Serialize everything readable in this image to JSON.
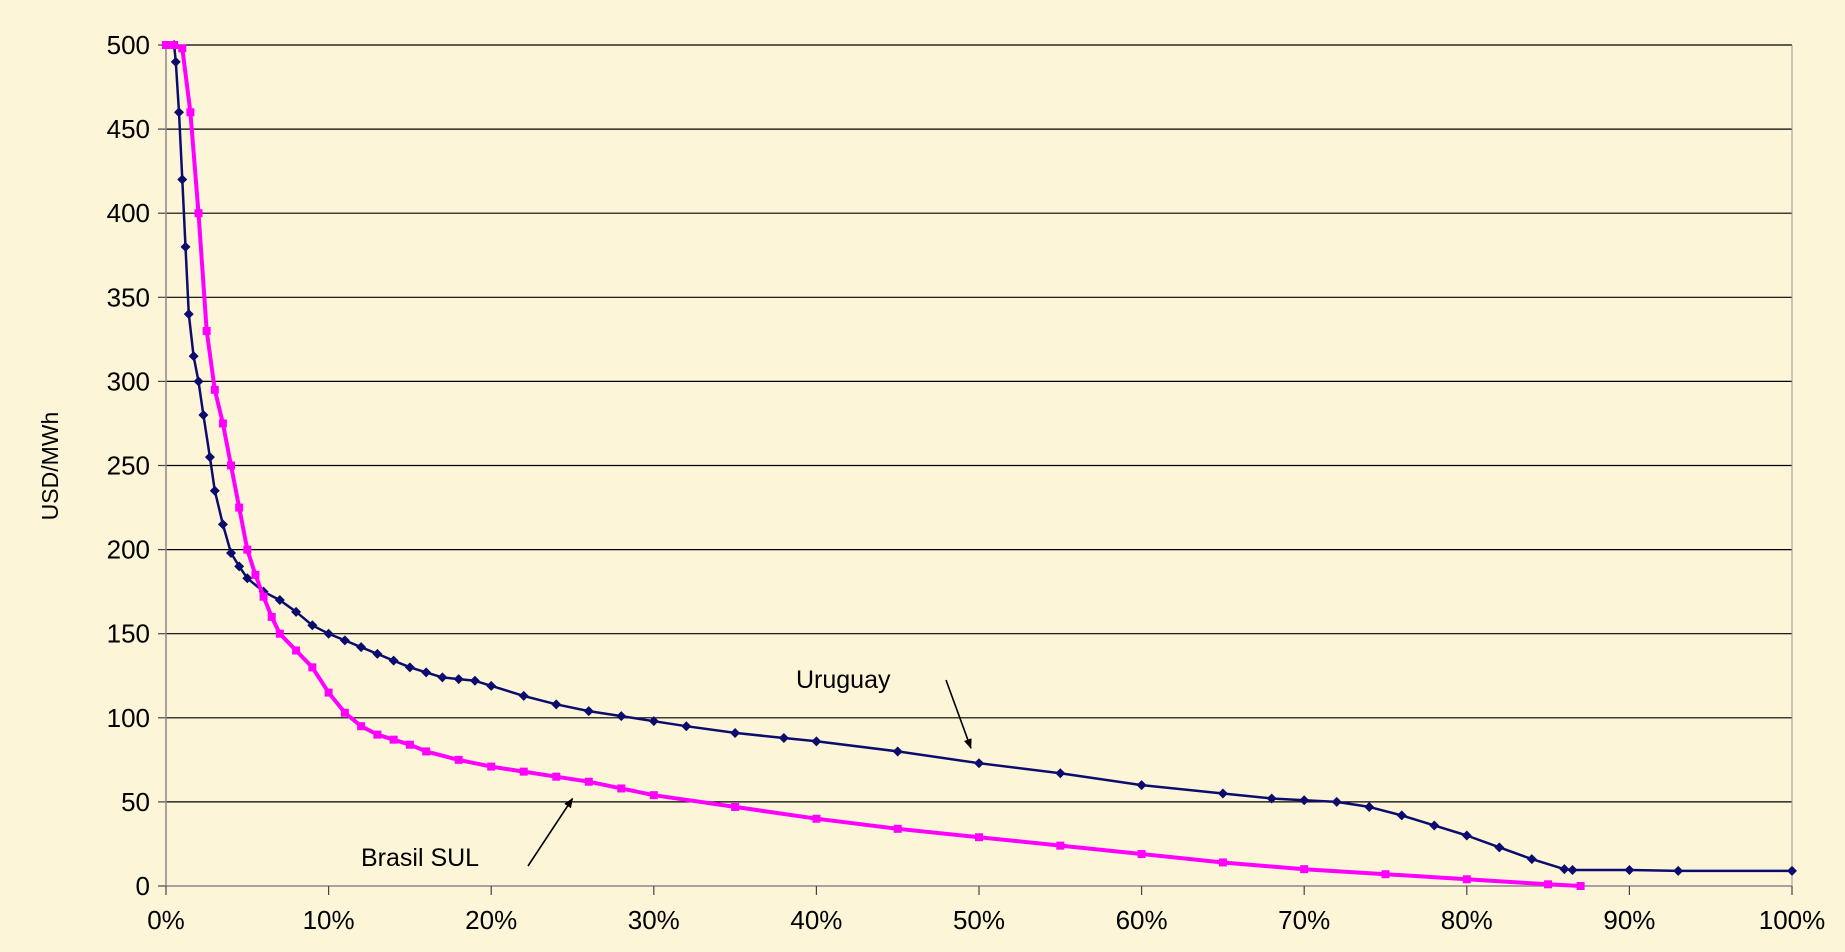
{
  "chart_data": {
    "type": "line",
    "title": "",
    "xlabel": "",
    "ylabel": "USD/MWh",
    "xlim": [
      0,
      100
    ],
    "ylim": [
      0,
      500
    ],
    "x_ticks": [
      0,
      10,
      20,
      30,
      40,
      50,
      60,
      70,
      80,
      90,
      100
    ],
    "x_tick_labels": [
      "0%",
      "10%",
      "20%",
      "30%",
      "40%",
      "50%",
      "60%",
      "70%",
      "80%",
      "90%",
      "100%"
    ],
    "y_ticks": [
      0,
      50,
      100,
      150,
      200,
      250,
      300,
      350,
      400,
      450,
      500
    ],
    "y_tick_labels": [
      "0",
      "50",
      "100",
      "150",
      "200",
      "250",
      "300",
      "350",
      "400",
      "450",
      "500"
    ],
    "grid": "horizontal",
    "colors": {
      "background": "#fdf5d8",
      "grid": "#000000",
      "uruguay": "#0c0c6e",
      "brasil_sul": "#ff00ff"
    },
    "series": [
      {
        "name": "Uruguay",
        "color": "#0c0c6e",
        "x": [
          0.5,
          0.6,
          0.8,
          1.0,
          1.2,
          1.4,
          1.7,
          2.0,
          2.3,
          2.7,
          3.0,
          3.5,
          4.0,
          4.5,
          5.0,
          6.0,
          7.0,
          8.0,
          9.0,
          10.0,
          11.0,
          12.0,
          13.0,
          14.0,
          15.0,
          16.0,
          17.0,
          18.0,
          19.0,
          20.0,
          22.0,
          24.0,
          26.0,
          28.0,
          30.0,
          32.0,
          35.0,
          38.0,
          40.0,
          45.0,
          50.0,
          55.0,
          60.0,
          65.0,
          68.0,
          70.0,
          72.0,
          74.0,
          76.0,
          78.0,
          80.0,
          82.0,
          84.0,
          86.0,
          86.5,
          90.0,
          93.0,
          100.0
        ],
        "y": [
          500,
          490,
          460,
          420,
          380,
          340,
          315,
          300,
          280,
          255,
          235,
          215,
          198,
          190,
          183,
          175,
          170,
          163,
          155,
          150,
          146,
          142,
          138,
          134,
          130,
          127,
          124,
          123,
          122,
          119,
          113,
          108,
          104,
          101,
          98,
          95,
          91,
          88,
          86,
          80,
          73,
          67,
          60,
          55,
          52,
          51,
          50,
          47,
          42,
          36,
          30,
          23,
          16,
          10,
          9.5,
          9.5,
          9,
          9
        ]
      },
      {
        "name": "Brasil SUL",
        "color": "#ff00ff",
        "x": [
          0.0,
          0.5,
          1.0,
          1.5,
          2.0,
          2.5,
          3.0,
          3.5,
          4.0,
          4.5,
          5.0,
          5.5,
          6.0,
          6.5,
          7.0,
          8.0,
          9.0,
          10.0,
          11.0,
          12.0,
          13.0,
          14.0,
          15.0,
          16.0,
          18.0,
          20.0,
          22.0,
          24.0,
          26.0,
          28.0,
          30.0,
          35.0,
          40.0,
          45.0,
          50.0,
          55.0,
          60.0,
          65.0,
          70.0,
          75.0,
          80.0,
          85.0,
          87.0
        ],
        "y": [
          500,
          500,
          498,
          460,
          400,
          330,
          295,
          275,
          250,
          225,
          200,
          185,
          172,
          160,
          150,
          140,
          130,
          115,
          103,
          95,
          90,
          87,
          84,
          80,
          75,
          71,
          68,
          65,
          62,
          58,
          54,
          47,
          40,
          34,
          29,
          24,
          19,
          14,
          10,
          7,
          4,
          1,
          0
        ]
      }
    ],
    "annotations": [
      {
        "text": "Uruguay",
        "series": "Uruguay",
        "points_to": [
          49.5,
          82
        ]
      },
      {
        "text": "Brasil SUL",
        "series": "Brasil SUL",
        "points_to": [
          25,
          52
        ]
      }
    ]
  }
}
